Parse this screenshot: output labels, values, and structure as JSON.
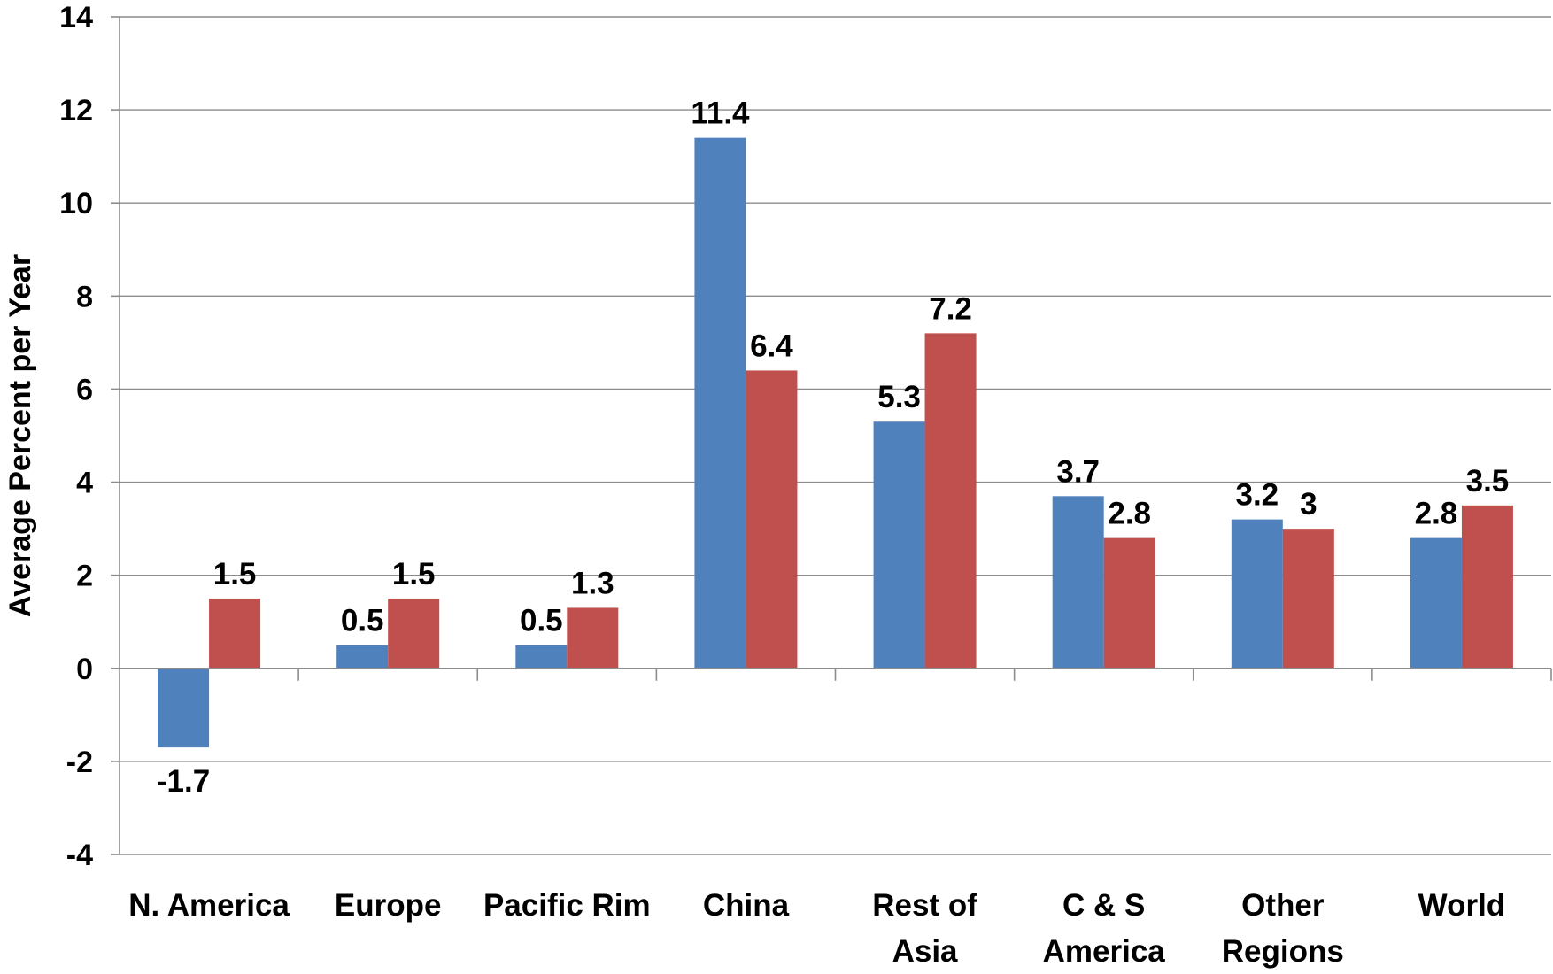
{
  "chart_data": {
    "type": "bar",
    "title": "",
    "xlabel": "",
    "ylabel": "Average Percent per Year",
    "ylim": [
      -4,
      14
    ],
    "yticks": [
      -4,
      -2,
      0,
      2,
      4,
      6,
      8,
      10,
      12,
      14
    ],
    "grid": true,
    "legend": "none",
    "categories": [
      [
        "N. America"
      ],
      [
        "Europe"
      ],
      [
        "Pacific Rim"
      ],
      [
        "China"
      ],
      [
        "Rest of",
        "Asia"
      ],
      [
        "C & S",
        "America"
      ],
      [
        "Other",
        "Regions"
      ],
      [
        "World"
      ]
    ],
    "series": [
      {
        "color": "#4f81bd",
        "values": [
          -1.7,
          0.5,
          0.5,
          11.4,
          5.3,
          3.7,
          3.2,
          2.8
        ],
        "labels": [
          "-1.7",
          "0.5",
          "0.5",
          "11.4",
          "5.3",
          "3.7",
          "3.2",
          "2.8"
        ]
      },
      {
        "color": "#c0504d",
        "values": [
          1.5,
          1.5,
          1.3,
          6.4,
          7.2,
          2.8,
          3.0,
          3.5
        ],
        "labels": [
          "1.5",
          "1.5",
          "1.3",
          "6.4",
          "7.2",
          "2.8",
          "3",
          "3.5"
        ]
      }
    ]
  }
}
